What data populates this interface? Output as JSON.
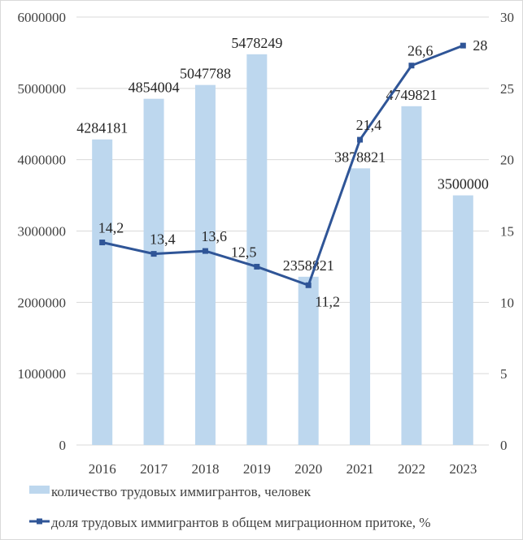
{
  "chart_data": {
    "type": "bar+line",
    "categories": [
      "2016",
      "2017",
      "2018",
      "2019",
      "2020",
      "2021",
      "2022",
      "2023"
    ],
    "series": [
      {
        "name": "количество трудовых  иммигрантов, человек",
        "type": "bar",
        "axis": "left",
        "color": "#bdd7ee",
        "values": [
          4284181,
          4854004,
          5047788,
          5478249,
          2358821,
          3878821,
          4749821,
          3500000
        ],
        "labels": [
          "4284181",
          "4854004",
          "5047788",
          "5478249",
          "2358821",
          "3878821",
          "4749821",
          "3500000"
        ]
      },
      {
        "name": "доля трудовых  иммигрантов в общем  миграционном притоке, %",
        "type": "line",
        "axis": "right",
        "color": "#2f5597",
        "values": [
          14.2,
          13.4,
          13.6,
          12.5,
          11.2,
          21.4,
          26.6,
          28
        ],
        "labels": [
          "14,2",
          "13,4",
          "13,6",
          "12,5",
          "11,2",
          "21,4",
          "26,6",
          "28"
        ]
      }
    ],
    "left_axis": {
      "ylim": [
        0,
        6000000
      ],
      "ticks": [
        "0",
        "1000000",
        "2000000",
        "3000000",
        "4000000",
        "5000000",
        "6000000"
      ]
    },
    "right_axis": {
      "ylim": [
        0,
        30
      ],
      "ticks": [
        "0",
        "5",
        "10",
        "15",
        "20",
        "25",
        "30"
      ]
    },
    "grid": true,
    "legend_position": "bottom"
  }
}
